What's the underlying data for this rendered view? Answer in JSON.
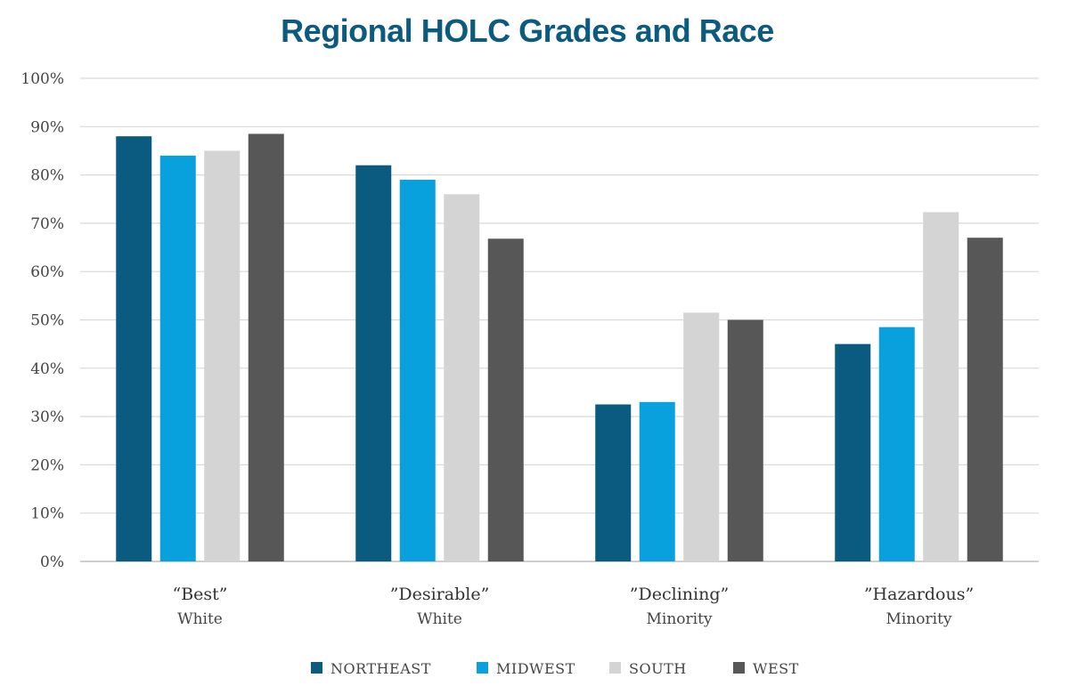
{
  "chart_data": {
    "type": "bar",
    "title": "Regional HOLC Grades and Race",
    "categories": [
      {
        "label": "“Best”",
        "sublabel": "White"
      },
      {
        "label": "”Desirable”",
        "sublabel": "White"
      },
      {
        "label": "”Declining”",
        "sublabel": "Minority"
      },
      {
        "label": "”Hazardous”",
        "sublabel": "Minority"
      }
    ],
    "series": [
      {
        "name": "NORTHEAST",
        "color": "#0b5a80",
        "values": [
          88,
          82,
          32.5,
          45
        ]
      },
      {
        "name": "MIDWEST",
        "color": "#09a0de",
        "values": [
          84,
          79,
          33,
          48.5
        ]
      },
      {
        "name": "SOUTH",
        "color": "#d4d4d4",
        "values": [
          85,
          76,
          51.5,
          72.3
        ]
      },
      {
        "name": "WEST",
        "color": "#575757",
        "values": [
          88.5,
          66.8,
          50,
          67
        ]
      }
    ],
    "yticks": [
      "0%",
      "10%",
      "20%",
      "30%",
      "40%",
      "50%",
      "60%",
      "70%",
      "80%",
      "90%",
      "100%"
    ],
    "ylim": [
      0,
      100
    ],
    "xlabel": "",
    "ylabel": "",
    "grid": true,
    "legend_position": "bottom"
  }
}
